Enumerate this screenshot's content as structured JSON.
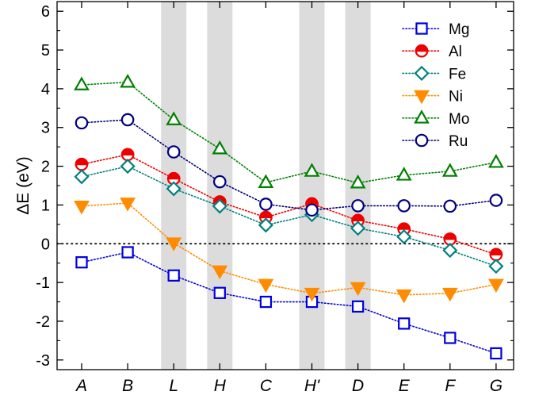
{
  "chart_data": {
    "type": "line",
    "ylabel": "ΔE (eV)",
    "ylim": [
      -3.25,
      6.25
    ],
    "yticks": [
      -3,
      -2,
      -1,
      0,
      1,
      2,
      3,
      4,
      5,
      6
    ],
    "ytick_labels": [
      "-3",
      "-2",
      "-1",
      "0",
      "1",
      "2",
      "3",
      "4",
      "5",
      "6"
    ],
    "categories": [
      "A",
      "B",
      "L",
      "H",
      "C",
      "H'",
      "D",
      "E",
      "F",
      "G"
    ],
    "shaded_categories": [
      "L",
      "H",
      "H'",
      "D"
    ],
    "reference_line_y": 0,
    "grid": false,
    "legend_position": "top-right",
    "series": [
      {
        "name": "Mg",
        "marker": "square",
        "color": "#0000dd",
        "fill": "none",
        "values": [
          -0.48,
          -0.22,
          -0.82,
          -1.27,
          -1.5,
          -1.5,
          -1.62,
          -2.06,
          -2.43,
          -2.83
        ]
      },
      {
        "name": "Al",
        "marker": "circle-half",
        "color": "#ee0000",
        "fill": "half",
        "values": [
          2.05,
          2.3,
          1.68,
          1.08,
          0.68,
          1.03,
          0.6,
          0.38,
          0.12,
          -0.28
        ]
      },
      {
        "name": "Fe",
        "marker": "diamond",
        "color": "#008080",
        "fill": "none",
        "values": [
          1.73,
          2.0,
          1.42,
          0.97,
          0.48,
          0.75,
          0.4,
          0.18,
          -0.17,
          -0.58
        ]
      },
      {
        "name": "Ni",
        "marker": "triangle-down",
        "color": "#ff8c00",
        "fill": "#ff8c00",
        "values": [
          0.97,
          1.05,
          0.02,
          -0.7,
          -1.05,
          -1.28,
          -1.13,
          -1.32,
          -1.28,
          -1.05
        ]
      },
      {
        "name": "Mo",
        "marker": "triangle-up",
        "color": "#008000",
        "fill": "none",
        "values": [
          4.1,
          4.17,
          3.2,
          2.45,
          1.58,
          1.87,
          1.57,
          1.77,
          1.87,
          2.1
        ]
      },
      {
        "name": "Ru",
        "marker": "circle",
        "color": "#00007f",
        "fill": "none",
        "values": [
          3.12,
          3.2,
          2.37,
          1.6,
          1.02,
          0.87,
          0.98,
          0.98,
          0.97,
          1.12
        ]
      }
    ]
  }
}
